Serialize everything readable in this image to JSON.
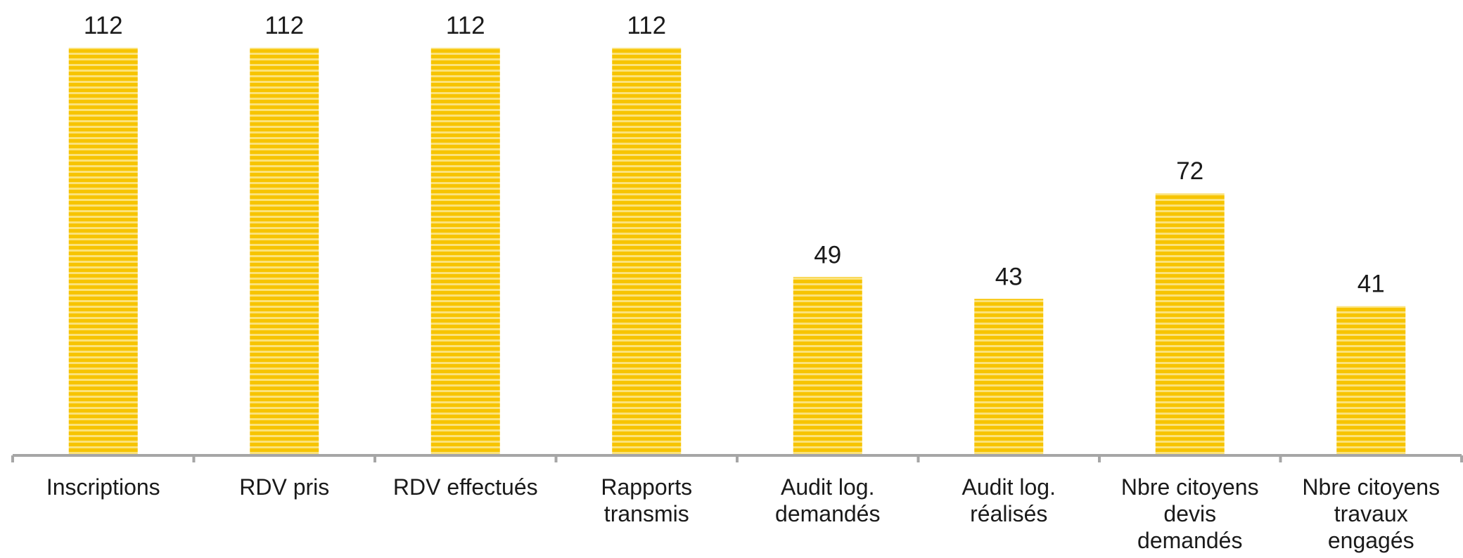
{
  "chart_data": {
    "type": "bar",
    "categories": [
      [
        "Inscriptions"
      ],
      [
        "RDV pris"
      ],
      [
        "RDV effectués"
      ],
      [
        "Rapports",
        "transmis"
      ],
      [
        "Audit log.",
        "demandés"
      ],
      [
        "Audit log.",
        "réalisés"
      ],
      [
        "Nbre citoyens",
        "devis",
        "demandés"
      ],
      [
        "Nbre citoyens",
        "travaux",
        "engagés"
      ]
    ],
    "values": [
      112,
      112,
      112,
      112,
      49,
      43,
      72,
      41
    ],
    "ylim": [
      0,
      112
    ],
    "grid": false,
    "legend": "none",
    "bar_color": "#F7C400",
    "bar_stripe_color": "#FBE27A",
    "axis_color": "#A6A6A6"
  }
}
